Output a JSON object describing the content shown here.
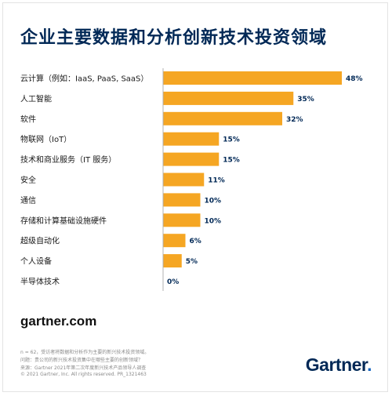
{
  "title": "企业主要数据和分析创新技术投资领域",
  "chart_data": {
    "type": "bar",
    "orientation": "horizontal",
    "title": "企业主要数据和分析创新技术投资领域",
    "categories": [
      "云计算（例如：IaaS, PaaS, SaaS）",
      "人工智能",
      "软件",
      "物联网（IoT）",
      "技术和商业服务（IT 服务）",
      "安全",
      "通信",
      "存储和计算基础设施硬件",
      "超级自动化",
      "个人设备",
      "半导体技术"
    ],
    "values": [
      48,
      35,
      32,
      15,
      15,
      11,
      10,
      10,
      6,
      5,
      0
    ],
    "value_labels": [
      "48%",
      "35%",
      "32%",
      "15%",
      "15%",
      "11%",
      "10%",
      "10%",
      "6%",
      "5%",
      "0%"
    ],
    "unit": "%",
    "xlim": [
      0,
      48
    ],
    "bar_color": "#f5a623",
    "grid": false
  },
  "footer": {
    "website": "gartner.com",
    "notes": [
      "n = 62，受访者将数据和分析作为主要的新兴技术投资领域。",
      "问题：贵公司的新兴技术投资集中在哪些主要的创新领域？",
      "来源：Gartner 2021年第二次年度新兴技术产品领导人调查",
      "© 2021 Gartner, Inc. All rights reserved. PR_1321463"
    ],
    "logo_text": "Gartner",
    "logo_dot": "."
  },
  "colors": {
    "bar": "#f5a623",
    "title": "#002856",
    "axis": "#b0b0b0"
  }
}
